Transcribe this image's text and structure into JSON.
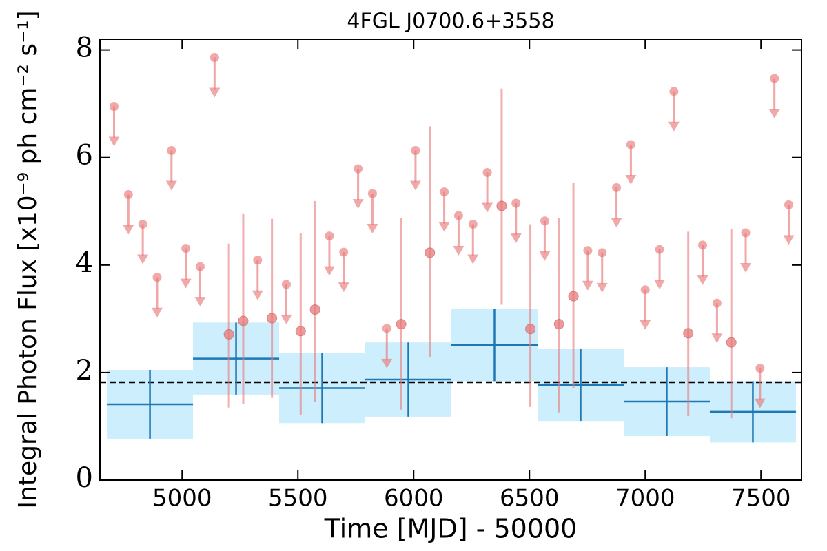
{
  "chart_data": {
    "type": "errorbar",
    "title": "4FGL J0700.6+3558",
    "xlabel": "Time [MJD] - 50000",
    "ylabel": "Integral Photon Flux [x10⁻⁹ ph cm⁻² s⁻¹]",
    "xlim": [
      4645,
      7675
    ],
    "ylim": [
      0,
      8.2
    ],
    "xticks": [
      5000,
      5500,
      6000,
      6500,
      7000,
      7500
    ],
    "yticks": [
      0,
      2,
      4,
      6,
      8
    ],
    "reference_line": {
      "value": 1.82,
      "color": "#000000",
      "dashed": true
    },
    "series": [
      {
        "color": "#1f77b4",
        "band_color": "#cdeefc",
        "x": [
          4861,
          5233,
          5605,
          5977,
          6349,
          6721,
          7093,
          7465
        ],
        "xerr": [
          186,
          186,
          186,
          186,
          186,
          186,
          186,
          186
        ],
        "values": [
          1.41,
          2.26,
          1.71,
          1.87,
          2.51,
          1.77,
          1.46,
          1.27
        ],
        "yerr": [
          0.64,
          0.67,
          0.65,
          0.69,
          0.67,
          0.67,
          0.64,
          0.57
        ]
      },
      {
        "color": "#e8797a",
        "x": [
          5202,
          5264,
          5388,
          5512,
          5574,
          5946,
          6070,
          6380,
          6504,
          6628,
          6690,
          7186,
          7372
        ],
        "values": [
          2.71,
          2.96,
          3.01,
          2.77,
          3.17,
          2.9,
          4.23,
          5.1,
          2.81,
          2.9,
          3.42,
          2.73,
          2.56
        ],
        "yerr_minus": [
          1.36,
          1.55,
          1.48,
          1.56,
          1.71,
          1.59,
          1.94,
          1.84,
          1.45,
          1.64,
          1.71,
          1.54,
          1.41
        ],
        "yerr_plus": [
          1.69,
          2.0,
          1.85,
          1.83,
          2.02,
          1.98,
          2.35,
          2.18,
          1.95,
          1.98,
          2.11,
          1.89,
          2.11
        ]
      },
      {
        "color": "#e8797a",
        "upper_limits": true,
        "x": [
          4706,
          4768,
          4830,
          4892,
          4954,
          5016,
          5078,
          5140,
          5326,
          5450,
          5636,
          5698,
          5760,
          5822,
          5884,
          6008,
          6132,
          6194,
          6256,
          6318,
          6442,
          6566,
          6752,
          6814,
          6876,
          6938,
          7000,
          7062,
          7124,
          7248,
          7310,
          7434,
          7496,
          7558,
          7620
        ],
        "values": [
          6.95,
          5.31,
          4.76,
          3.77,
          6.13,
          4.31,
          3.97,
          7.86,
          4.09,
          3.64,
          4.54,
          4.24,
          5.79,
          5.33,
          2.82,
          6.13,
          5.36,
          4.92,
          4.76,
          5.72,
          5.15,
          4.82,
          4.27,
          4.23,
          5.44,
          6.24,
          3.54,
          4.29,
          7.23,
          4.37,
          3.29,
          4.6,
          2.08,
          7.47,
          5.12
        ]
      }
    ]
  }
}
